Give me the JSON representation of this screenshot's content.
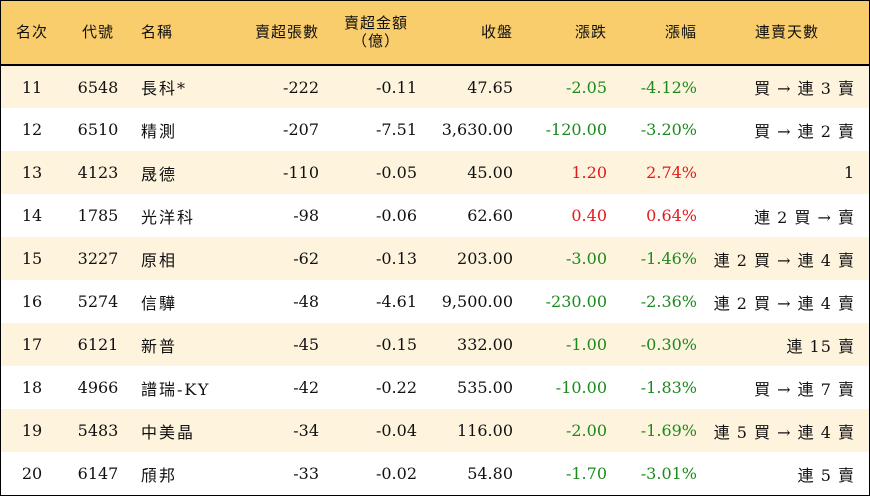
{
  "headers": {
    "rank": "名次",
    "code": "代號",
    "name": "名稱",
    "sell_lots": "賣超張數",
    "sell_amount_line1": "賣超金額",
    "sell_amount_line2": "（億）",
    "close": "收盤",
    "change": "漲跌",
    "change_pct": "漲幅",
    "streak": "連賣天數"
  },
  "colors": {
    "header_bg": "#f9cc6c",
    "odd_row_bg": "#fef4de",
    "up": "#e31a1c",
    "down": "#1c8a1c"
  },
  "rows": [
    {
      "rank": "11",
      "code": "6548",
      "name": "長科*",
      "sell_lots": "-222",
      "sell_amount": "-0.11",
      "close": "47.65",
      "change": "-2.05",
      "change_pct": "-4.12%",
      "direction": "down",
      "streak": "買 → 連 3 賣"
    },
    {
      "rank": "12",
      "code": "6510",
      "name": "精測",
      "sell_lots": "-207",
      "sell_amount": "-7.51",
      "close": "3,630.00",
      "change": "-120.00",
      "change_pct": "-3.20%",
      "direction": "down",
      "streak": "買 → 連 2 賣"
    },
    {
      "rank": "13",
      "code": "4123",
      "name": "晟德",
      "sell_lots": "-110",
      "sell_amount": "-0.05",
      "close": "45.00",
      "change": "1.20",
      "change_pct": "2.74%",
      "direction": "up",
      "streak": "1"
    },
    {
      "rank": "14",
      "code": "1785",
      "name": "光洋科",
      "sell_lots": "-98",
      "sell_amount": "-0.06",
      "close": "62.60",
      "change": "0.40",
      "change_pct": "0.64%",
      "direction": "up",
      "streak": "連 2 買 → 賣"
    },
    {
      "rank": "15",
      "code": "3227",
      "name": "原相",
      "sell_lots": "-62",
      "sell_amount": "-0.13",
      "close": "203.00",
      "change": "-3.00",
      "change_pct": "-1.46%",
      "direction": "down",
      "streak": "連 2 買 → 連 4 賣"
    },
    {
      "rank": "16",
      "code": "5274",
      "name": "信驊",
      "sell_lots": "-48",
      "sell_amount": "-4.61",
      "close": "9,500.00",
      "change": "-230.00",
      "change_pct": "-2.36%",
      "direction": "down",
      "streak": "連 2 買 → 連 4 賣"
    },
    {
      "rank": "17",
      "code": "6121",
      "name": "新普",
      "sell_lots": "-45",
      "sell_amount": "-0.15",
      "close": "332.00",
      "change": "-1.00",
      "change_pct": "-0.30%",
      "direction": "down",
      "streak": "連 15 賣"
    },
    {
      "rank": "18",
      "code": "4966",
      "name": "譜瑞-KY",
      "sell_lots": "-42",
      "sell_amount": "-0.22",
      "close": "535.00",
      "change": "-10.00",
      "change_pct": "-1.83%",
      "direction": "down",
      "streak": "買 → 連 7 賣"
    },
    {
      "rank": "19",
      "code": "5483",
      "name": "中美晶",
      "sell_lots": "-34",
      "sell_amount": "-0.04",
      "close": "116.00",
      "change": "-2.00",
      "change_pct": "-1.69%",
      "direction": "down",
      "streak": "連 5 買 → 連 4 賣"
    },
    {
      "rank": "20",
      "code": "6147",
      "name": "頎邦",
      "sell_lots": "-33",
      "sell_amount": "-0.02",
      "close": "54.80",
      "change": "-1.70",
      "change_pct": "-3.01%",
      "direction": "down",
      "streak": "連 5 賣"
    }
  ]
}
